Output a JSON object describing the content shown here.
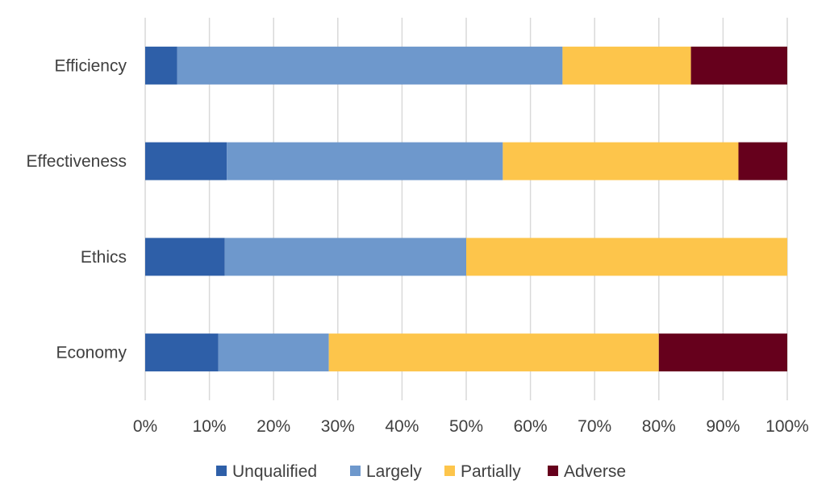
{
  "chart_data": {
    "type": "bar",
    "orientation": "horizontal",
    "stacked": "percent",
    "categories": [
      "Efficiency",
      "Effectiveness",
      "Ethics",
      "Economy"
    ],
    "series": [
      {
        "name": "Unqualified",
        "color": "#2e5fa8",
        "values": [
          5,
          12.7,
          12.4,
          11.4
        ]
      },
      {
        "name": "Largely",
        "color": "#6e98cc",
        "values": [
          60,
          43,
          37.6,
          17.2
        ]
      },
      {
        "name": "Partially",
        "color": "#fdc54b",
        "values": [
          20,
          36.7,
          50,
          51.4
        ]
      },
      {
        "name": "Adverse",
        "color": "#66001c",
        "values": [
          15,
          7.6,
          0,
          20
        ]
      }
    ],
    "xticks": [
      "0%",
      "10%",
      "20%",
      "30%",
      "40%",
      "50%",
      "60%",
      "70%",
      "80%",
      "90%",
      "100%"
    ],
    "xlim": [
      0,
      100
    ],
    "grid": true,
    "legend_position": "bottom"
  }
}
